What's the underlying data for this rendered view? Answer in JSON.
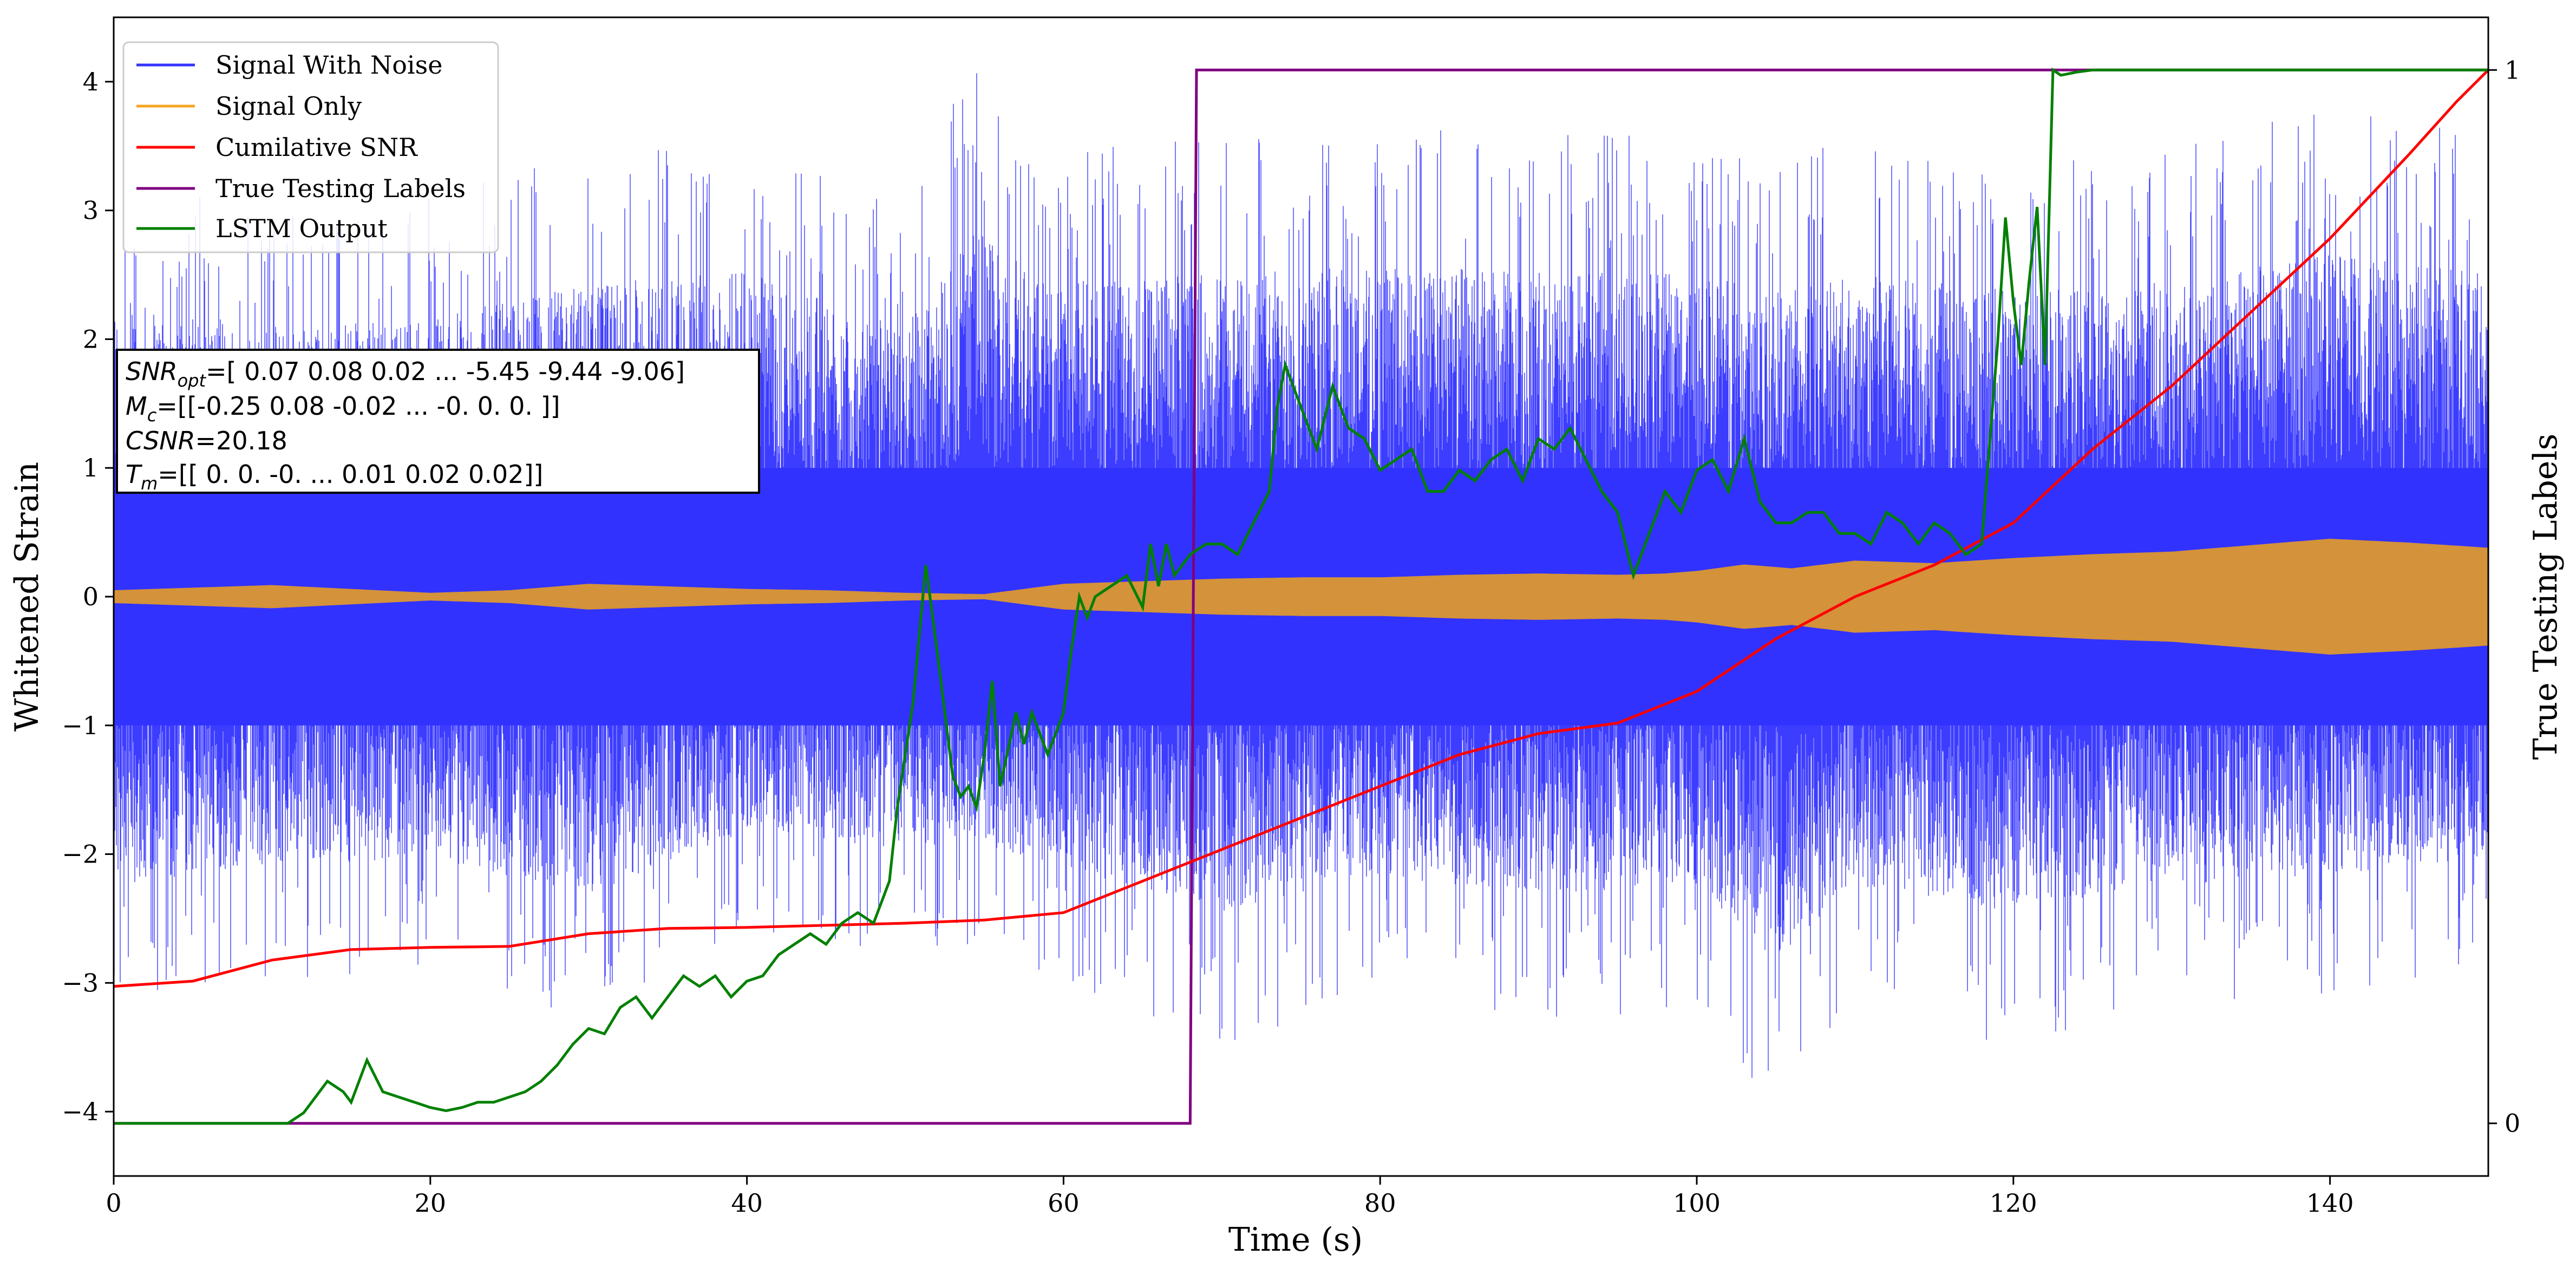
{
  "chart_data": {
    "type": "line",
    "xlabel": "Time (s)",
    "ylabel": "Whitened Strain",
    "y2label": "True Testing Labels",
    "xlim": [
      0,
      150
    ],
    "ylim": [
      -4.5,
      4.5
    ],
    "y2lim": [
      -0.05,
      1.05
    ],
    "x_ticks": [
      0,
      20,
      40,
      60,
      80,
      100,
      120,
      140
    ],
    "y_ticks": [
      -4,
      -3,
      -2,
      -1,
      0,
      1,
      2,
      3,
      4
    ],
    "y2_ticks": [
      0,
      1
    ],
    "grid": false,
    "legend_position": "top-left",
    "colors": {
      "noise": "#3333ff",
      "signal": "#f5a623",
      "csnr": "#ff0000",
      "labels": "#800080",
      "lstm": "#008000"
    },
    "legend": [
      "Signal With Noise",
      "Signal Only",
      "Cumilative SNR",
      "True Testing Labels",
      "LSTM Output"
    ],
    "annotation": {
      "line1_label": "SNR",
      "line1_sub": "opt",
      "line1_rest": "=[ 0.07  0.08  0.02 ... -5.45 -9.44 -9.06]",
      "line2_label": "M",
      "line2_sub": "c",
      "line2_rest": "=[[-0.25  0.08 -0.02 ... -0.    0.    0.  ]]",
      "line3_label": "CSNR",
      "line3_rest": "=20.18",
      "line4_label": "T",
      "line4_sub": "m",
      "line4_rest": "=[[ 0.    0.   -0.   ...  0.01  0.02  0.02]]"
    },
    "series": [
      {
        "name": "Signal With Noise",
        "axis": "left",
        "style": "dense_noise",
        "core_band": 1.0,
        "envelope_x": [
          0,
          10,
          20,
          30,
          40,
          50,
          54,
          60,
          70,
          80,
          90,
          100,
          105,
          110,
          120,
          130,
          140,
          150
        ],
        "envelope_max": [
          3.3,
          3.0,
          3.1,
          3.5,
          3.6,
          3.0,
          4.15,
          3.5,
          3.6,
          3.7,
          3.6,
          3.6,
          3.4,
          3.6,
          3.4,
          3.5,
          3.8,
          3.6
        ],
        "envelope_min": [
          -3.2,
          -3.0,
          -2.9,
          -3.3,
          -2.6,
          -2.8,
          -2.7,
          -3.0,
          -3.5,
          -3.1,
          -3.3,
          -3.2,
          -4.05,
          -3.2,
          -3.5,
          -3.2,
          -3.1,
          -2.9
        ]
      },
      {
        "name": "Signal Only",
        "axis": "left",
        "style": "oscillation_envelope",
        "x": [
          0,
          5,
          10,
          15,
          20,
          25,
          30,
          35,
          40,
          45,
          50,
          55,
          60,
          65,
          70,
          75,
          80,
          85,
          90,
          95,
          98,
          100,
          103,
          106,
          110,
          115,
          120,
          125,
          130,
          135,
          140,
          145,
          150
        ],
        "amplitude": [
          0.05,
          0.07,
          0.09,
          0.06,
          0.03,
          0.05,
          0.1,
          0.08,
          0.06,
          0.05,
          0.03,
          0.02,
          0.1,
          0.12,
          0.14,
          0.15,
          0.15,
          0.17,
          0.18,
          0.17,
          0.18,
          0.2,
          0.25,
          0.22,
          0.28,
          0.26,
          0.3,
          0.33,
          0.35,
          0.4,
          0.45,
          0.42,
          0.38
        ]
      },
      {
        "name": "Cumilative SNR",
        "axis": "right",
        "x": [
          0,
          5,
          10,
          15,
          20,
          25,
          30,
          35,
          40,
          45,
          50,
          55,
          60,
          65,
          70,
          75,
          80,
          85,
          90,
          95,
          100,
          105,
          110,
          115,
          120,
          125,
          130,
          135,
          140,
          145,
          148,
          150
        ],
        "y": [
          0.13,
          0.135,
          0.155,
          0.165,
          0.167,
          0.168,
          0.18,
          0.185,
          0.186,
          0.188,
          0.19,
          0.193,
          0.2,
          0.23,
          0.26,
          0.29,
          0.32,
          0.35,
          0.37,
          0.38,
          0.41,
          0.46,
          0.5,
          0.53,
          0.57,
          0.64,
          0.7,
          0.77,
          0.84,
          0.92,
          0.97,
          1.0
        ]
      },
      {
        "name": "True Testing Labels",
        "axis": "right",
        "x": [
          0,
          68,
          68.4,
          150
        ],
        "y": [
          0,
          0,
          1,
          1
        ]
      },
      {
        "name": "LSTM Output",
        "axis": "right",
        "x": [
          0,
          11,
          12,
          13.5,
          14.5,
          15,
          16,
          17,
          18,
          19,
          20,
          21,
          22,
          23,
          24,
          25,
          26,
          27,
          28,
          29,
          30,
          31,
          32,
          33,
          34,
          35,
          36,
          37,
          38,
          39,
          40,
          41,
          42,
          43,
          44,
          45,
          46,
          47,
          48,
          49,
          49.5,
          50.5,
          51.3,
          52,
          53,
          53.5,
          54,
          54.5,
          55,
          55.5,
          56,
          57,
          57.5,
          58,
          59,
          60,
          60.5,
          61,
          61.5,
          62,
          63,
          64,
          65,
          65.5,
          66,
          66.5,
          67,
          68,
          69,
          70,
          71,
          72,
          73,
          73.5,
          74,
          75,
          76,
          77,
          78,
          79,
          80,
          81,
          82,
          83,
          84,
          85,
          86,
          87,
          88,
          89,
          90,
          91,
          92,
          93,
          94,
          95,
          95.5,
          96,
          97,
          98,
          99,
          100,
          101,
          102,
          103,
          104,
          105,
          106,
          107,
          108,
          109,
          110,
          111,
          112,
          113,
          114,
          115,
          116,
          117,
          118,
          119,
          119.5,
          120,
          120.5,
          121,
          121.5,
          122,
          122.5,
          123,
          124,
          125,
          126,
          127,
          128,
          130,
          150
        ],
        "y": [
          0,
          0,
          0.01,
          0.04,
          0.03,
          0.02,
          0.06,
          0.03,
          0.025,
          0.02,
          0.015,
          0.012,
          0.015,
          0.02,
          0.02,
          0.025,
          0.03,
          0.04,
          0.055,
          0.075,
          0.09,
          0.085,
          0.11,
          0.12,
          0.1,
          0.12,
          0.14,
          0.13,
          0.14,
          0.12,
          0.135,
          0.14,
          0.16,
          0.17,
          0.18,
          0.17,
          0.19,
          0.2,
          0.19,
          0.23,
          0.3,
          0.4,
          0.53,
          0.45,
          0.33,
          0.31,
          0.32,
          0.3,
          0.35,
          0.42,
          0.32,
          0.39,
          0.36,
          0.39,
          0.35,
          0.39,
          0.45,
          0.5,
          0.48,
          0.5,
          0.51,
          0.52,
          0.49,
          0.55,
          0.51,
          0.55,
          0.52,
          0.54,
          0.55,
          0.55,
          0.54,
          0.57,
          0.6,
          0.68,
          0.72,
          0.68,
          0.64,
          0.7,
          0.66,
          0.65,
          0.62,
          0.63,
          0.64,
          0.6,
          0.6,
          0.62,
          0.61,
          0.63,
          0.64,
          0.61,
          0.65,
          0.64,
          0.66,
          0.63,
          0.6,
          0.58,
          0.55,
          0.52,
          0.56,
          0.6,
          0.58,
          0.62,
          0.63,
          0.6,
          0.65,
          0.59,
          0.57,
          0.57,
          0.58,
          0.58,
          0.56,
          0.56,
          0.55,
          0.58,
          0.57,
          0.55,
          0.57,
          0.56,
          0.54,
          0.55,
          0.74,
          0.86,
          0.78,
          0.72,
          0.8,
          0.87,
          0.72,
          1.0,
          0.995,
          0.998,
          1.0,
          1.0,
          1.0,
          1.0,
          1.0,
          1.0
        ]
      }
    ]
  }
}
